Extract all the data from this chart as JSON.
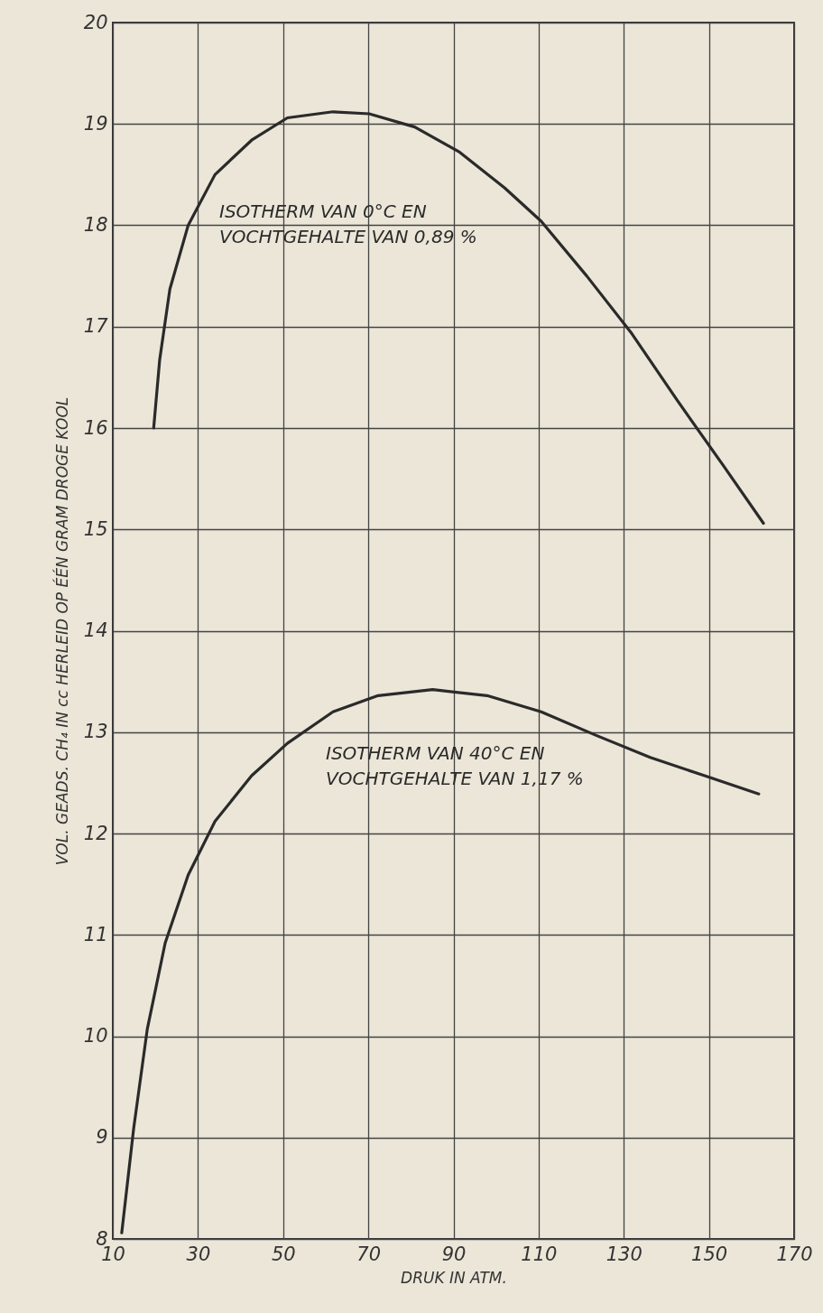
{
  "chart_data": {
    "type": "line",
    "xlabel": "DRUK IN ATM.",
    "ylabel": "VOL. GEADS. CH₄ IN cc HERLEID OP ÉÉN GRAM DROGE KOOL",
    "xlim": [
      10,
      170
    ],
    "ylim": [
      8,
      20
    ],
    "xticks": [
      10,
      30,
      50,
      70,
      90,
      110,
      130,
      150,
      170
    ],
    "yticks": [
      8,
      9,
      10,
      11,
      12,
      13,
      14,
      15,
      16,
      17,
      18,
      19,
      20
    ],
    "grid": true,
    "series": [
      {
        "name": "ISOTHERM VAN 0°C EN\nVOCHTGEHALTE VAN 0,89 %",
        "color": "#2a2a2a",
        "x": [
          19.6,
          21,
          23.4,
          27.7,
          34,
          42.6,
          51,
          61.7,
          70.2,
          80.9,
          91.5,
          102,
          110.6,
          121.3,
          131.9,
          142.6,
          153.2,
          162.8
        ],
        "values": [
          16.0,
          16.67,
          17.37,
          18.0,
          18.5,
          18.84,
          19.06,
          19.12,
          19.1,
          18.97,
          18.72,
          18.37,
          18.04,
          17.5,
          16.93,
          16.27,
          15.64,
          15.06
        ]
      },
      {
        "name": "ISOTHERM VAN 40°C EN\nVOCHTGEHALTE VAN 1,17 %",
        "color": "#2a2a2a",
        "x": [
          12.1,
          14.9,
          18.1,
          22.3,
          27.7,
          34,
          42.6,
          51,
          61.7,
          72.3,
          85.1,
          97.9,
          110.6,
          123.4,
          136.2,
          149,
          161.7
        ],
        "values": [
          8.06,
          9.09,
          10.07,
          10.92,
          11.59,
          12.12,
          12.57,
          12.89,
          13.2,
          13.36,
          13.42,
          13.36,
          13.2,
          12.97,
          12.75,
          12.57,
          12.39
        ]
      }
    ]
  }
}
